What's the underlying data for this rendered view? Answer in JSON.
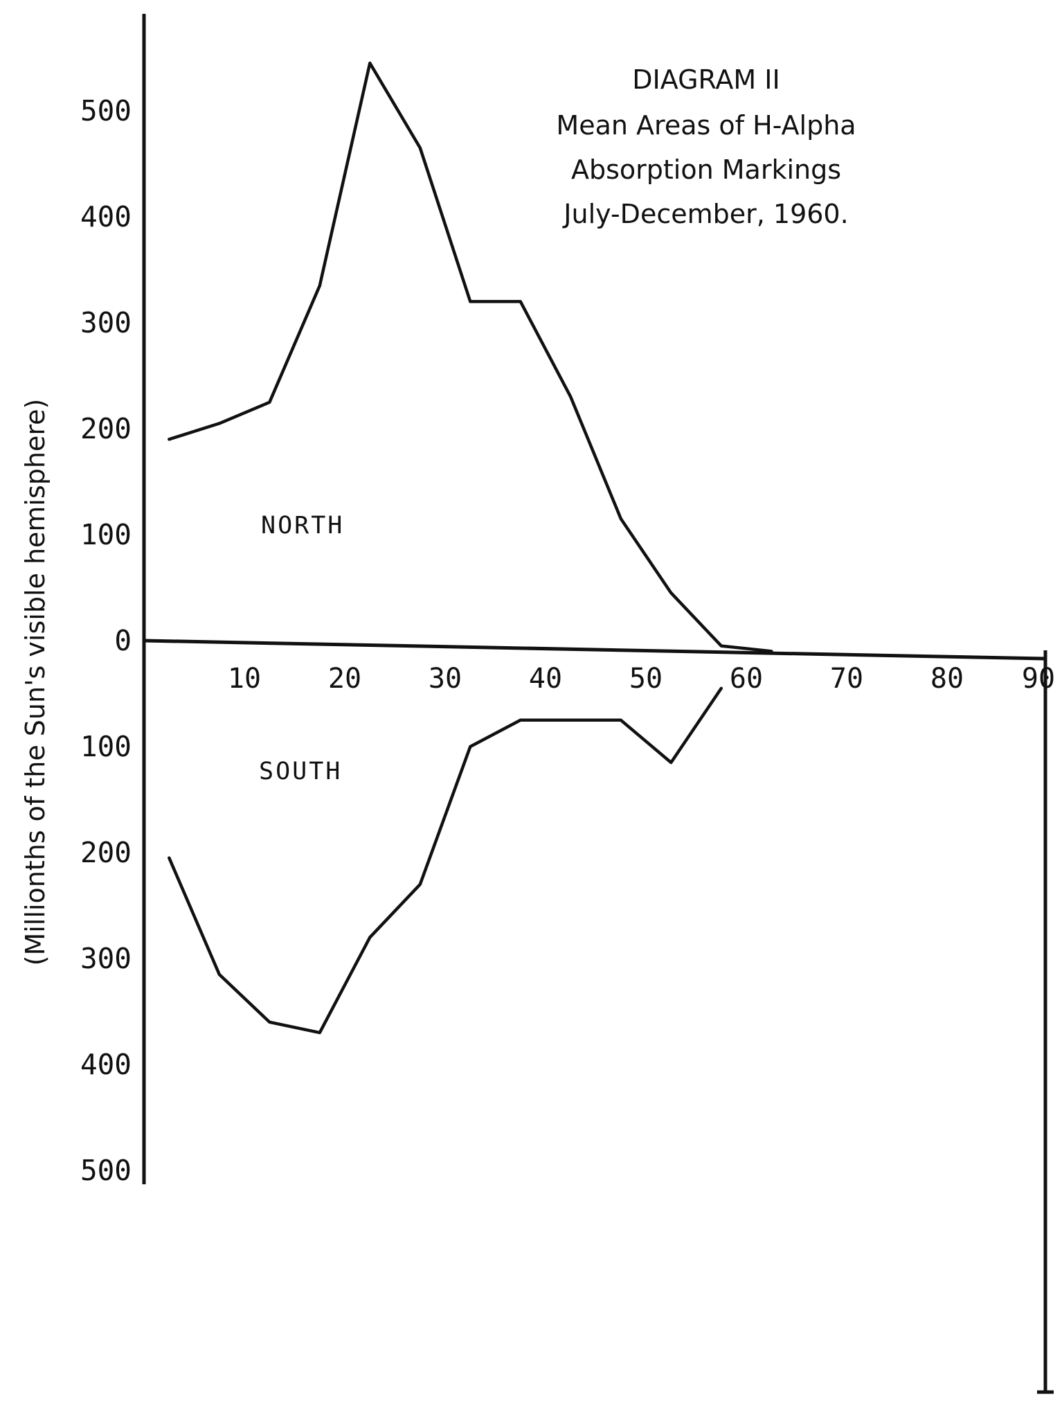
{
  "chart_data": {
    "type": "line",
    "title_lines": [
      "DIAGRAM II",
      "Mean Areas of H-Alpha",
      "Absorption Markings",
      "July-December, 1960."
    ],
    "ylabel": "(Millionths of the Sun's visible hemisphere)",
    "xlabel": "",
    "x_ticks": [
      "10",
      "20",
      "30",
      "40",
      "50",
      "60",
      "70",
      "80",
      "90"
    ],
    "y_ticks_north": [
      "0",
      "100",
      "200",
      "300",
      "400",
      "500"
    ],
    "y_ticks_south": [
      "100",
      "200",
      "300",
      "400",
      "500"
    ],
    "xlim": [
      0,
      90
    ],
    "ylim": [
      -500,
      520
    ],
    "region_labels": {
      "north": "NORTH",
      "south": "SOUTH"
    },
    "series": [
      {
        "name": "NORTH",
        "x": [
          2.5,
          7.5,
          12.5,
          17.5,
          22.5,
          27.5,
          32.5,
          37.5,
          42.5,
          47.5,
          52.5,
          57.5,
          62.5
        ],
        "values": [
          190,
          205,
          225,
          335,
          545,
          465,
          320,
          320,
          230,
          115,
          45,
          -5,
          -10
        ]
      },
      {
        "name": "SOUTH",
        "x": [
          2.5,
          7.5,
          12.5,
          17.5,
          22.5,
          27.5,
          32.5,
          37.5,
          42.5,
          47.5,
          52.5,
          57.5
        ],
        "values": [
          -205,
          -315,
          -360,
          -370,
          -280,
          -230,
          -100,
          -75,
          -75,
          -75,
          -115,
          -45
        ]
      }
    ]
  }
}
